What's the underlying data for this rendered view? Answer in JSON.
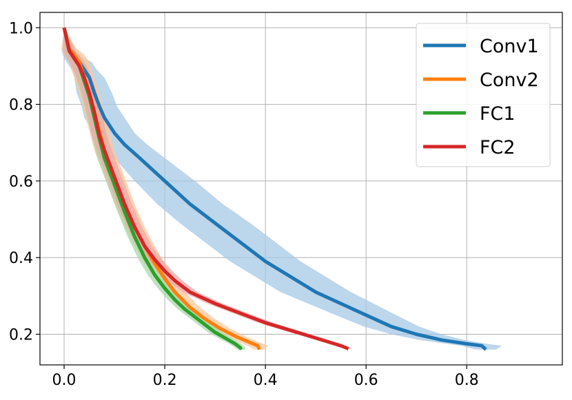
{
  "chart_data": {
    "type": "line",
    "title": "",
    "xlabel": "",
    "ylabel": "",
    "xlim": [
      -0.048,
      0.99
    ],
    "ylim": [
      0.12,
      1.04
    ],
    "grid": true,
    "legend_position": "top-right",
    "x_ticks": [
      {
        "value": 0.0,
        "label": "0.0"
      },
      {
        "value": 0.2,
        "label": "0.2"
      },
      {
        "value": 0.4,
        "label": "0.4"
      },
      {
        "value": 0.6,
        "label": "0.6"
      },
      {
        "value": 0.8,
        "label": "0.8"
      }
    ],
    "y_ticks": [
      {
        "value": 0.2,
        "label": "0.2"
      },
      {
        "value": 0.4,
        "label": "0.4"
      },
      {
        "value": 0.6,
        "label": "0.6"
      },
      {
        "value": 0.8,
        "label": "0.8"
      },
      {
        "value": 1.0,
        "label": "1.0"
      }
    ],
    "series": [
      {
        "name": "Conv1",
        "color": "#1f77b4",
        "band_color": "#a6c8e6",
        "points": [
          [
            0.0,
            1.0
          ],
          [
            0.01,
            0.94
          ],
          [
            0.02,
            0.92
          ],
          [
            0.03,
            0.91
          ],
          [
            0.04,
            0.89
          ],
          [
            0.05,
            0.87
          ],
          [
            0.06,
            0.83
          ],
          [
            0.07,
            0.795
          ],
          [
            0.08,
            0.765
          ],
          [
            0.1,
            0.725
          ],
          [
            0.12,
            0.695
          ],
          [
            0.15,
            0.66
          ],
          [
            0.2,
            0.6
          ],
          [
            0.25,
            0.54
          ],
          [
            0.3,
            0.49
          ],
          [
            0.35,
            0.44
          ],
          [
            0.4,
            0.39
          ],
          [
            0.45,
            0.35
          ],
          [
            0.5,
            0.31
          ],
          [
            0.55,
            0.28
          ],
          [
            0.6,
            0.25
          ],
          [
            0.65,
            0.22
          ],
          [
            0.7,
            0.2
          ],
          [
            0.75,
            0.185
          ],
          [
            0.8,
            0.175
          ],
          [
            0.83,
            0.17
          ],
          [
            0.838,
            0.16
          ]
        ],
        "band_width": [
          0.0,
          0.015,
          0.02,
          0.025,
          0.025,
          0.03,
          0.035,
          0.035,
          0.04,
          0.04,
          0.045,
          0.05,
          0.06,
          0.065,
          0.07,
          0.07,
          0.07,
          0.07,
          0.07,
          0.065,
          0.06,
          0.055,
          0.05,
          0.045,
          0.04,
          0.04,
          0.02
        ]
      },
      {
        "name": "Conv2",
        "color": "#ff7f0e",
        "band_color": "#fdc89c",
        "points": [
          [
            0.0,
            1.0
          ],
          [
            0.01,
            0.945
          ],
          [
            0.02,
            0.93
          ],
          [
            0.03,
            0.91
          ],
          [
            0.04,
            0.87
          ],
          [
            0.05,
            0.83
          ],
          [
            0.06,
            0.78
          ],
          [
            0.07,
            0.73
          ],
          [
            0.08,
            0.68
          ],
          [
            0.1,
            0.61
          ],
          [
            0.12,
            0.54
          ],
          [
            0.14,
            0.48
          ],
          [
            0.16,
            0.43
          ],
          [
            0.18,
            0.385
          ],
          [
            0.2,
            0.345
          ],
          [
            0.22,
            0.31
          ],
          [
            0.25,
            0.27
          ],
          [
            0.28,
            0.24
          ],
          [
            0.31,
            0.215
          ],
          [
            0.34,
            0.195
          ],
          [
            0.37,
            0.178
          ],
          [
            0.385,
            0.17
          ],
          [
            0.388,
            0.16
          ]
        ],
        "band_width": [
          0.0,
          0.015,
          0.02,
          0.02,
          0.02,
          0.02,
          0.02,
          0.02,
          0.02,
          0.02,
          0.02,
          0.02,
          0.02,
          0.02,
          0.02,
          0.02,
          0.02,
          0.02,
          0.02,
          0.02,
          0.02,
          0.02,
          0.01
        ]
      },
      {
        "name": "FC1",
        "color": "#2ca02c",
        "band_color": "#a8d8a8",
        "points": [
          [
            0.0,
            1.0
          ],
          [
            0.01,
            0.94
          ],
          [
            0.02,
            0.92
          ],
          [
            0.03,
            0.9
          ],
          [
            0.04,
            0.86
          ],
          [
            0.05,
            0.82
          ],
          [
            0.06,
            0.765
          ],
          [
            0.07,
            0.71
          ],
          [
            0.08,
            0.66
          ],
          [
            0.1,
            0.59
          ],
          [
            0.12,
            0.52
          ],
          [
            0.14,
            0.455
          ],
          [
            0.16,
            0.4
          ],
          [
            0.18,
            0.355
          ],
          [
            0.2,
            0.32
          ],
          [
            0.22,
            0.29
          ],
          [
            0.24,
            0.265
          ],
          [
            0.26,
            0.245
          ],
          [
            0.28,
            0.225
          ],
          [
            0.3,
            0.205
          ],
          [
            0.32,
            0.19
          ],
          [
            0.34,
            0.175
          ],
          [
            0.35,
            0.165
          ],
          [
            0.352,
            0.16
          ]
        ],
        "band_width": [
          0.0,
          0.012,
          0.014,
          0.014,
          0.014,
          0.014,
          0.014,
          0.014,
          0.014,
          0.014,
          0.014,
          0.014,
          0.014,
          0.014,
          0.014,
          0.014,
          0.014,
          0.014,
          0.014,
          0.014,
          0.014,
          0.012,
          0.01,
          0.008
        ]
      },
      {
        "name": "FC2",
        "color": "#d62728",
        "band_color": "#f0a8a8",
        "points": [
          [
            0.0,
            1.0
          ],
          [
            0.01,
            0.94
          ],
          [
            0.02,
            0.92
          ],
          [
            0.03,
            0.9
          ],
          [
            0.04,
            0.87
          ],
          [
            0.05,
            0.83
          ],
          [
            0.06,
            0.78
          ],
          [
            0.07,
            0.72
          ],
          [
            0.08,
            0.68
          ],
          [
            0.1,
            0.61
          ],
          [
            0.12,
            0.54
          ],
          [
            0.14,
            0.48
          ],
          [
            0.16,
            0.43
          ],
          [
            0.18,
            0.395
          ],
          [
            0.2,
            0.365
          ],
          [
            0.22,
            0.34
          ],
          [
            0.25,
            0.31
          ],
          [
            0.3,
            0.28
          ],
          [
            0.35,
            0.255
          ],
          [
            0.4,
            0.23
          ],
          [
            0.45,
            0.21
          ],
          [
            0.5,
            0.19
          ],
          [
            0.55,
            0.17
          ],
          [
            0.565,
            0.162
          ]
        ],
        "band_width": [
          0.0,
          0.012,
          0.015,
          0.015,
          0.015,
          0.015,
          0.015,
          0.015,
          0.015,
          0.015,
          0.015,
          0.015,
          0.015,
          0.015,
          0.015,
          0.015,
          0.015,
          0.015,
          0.015,
          0.015,
          0.015,
          0.012,
          0.01,
          0.008
        ]
      }
    ]
  }
}
